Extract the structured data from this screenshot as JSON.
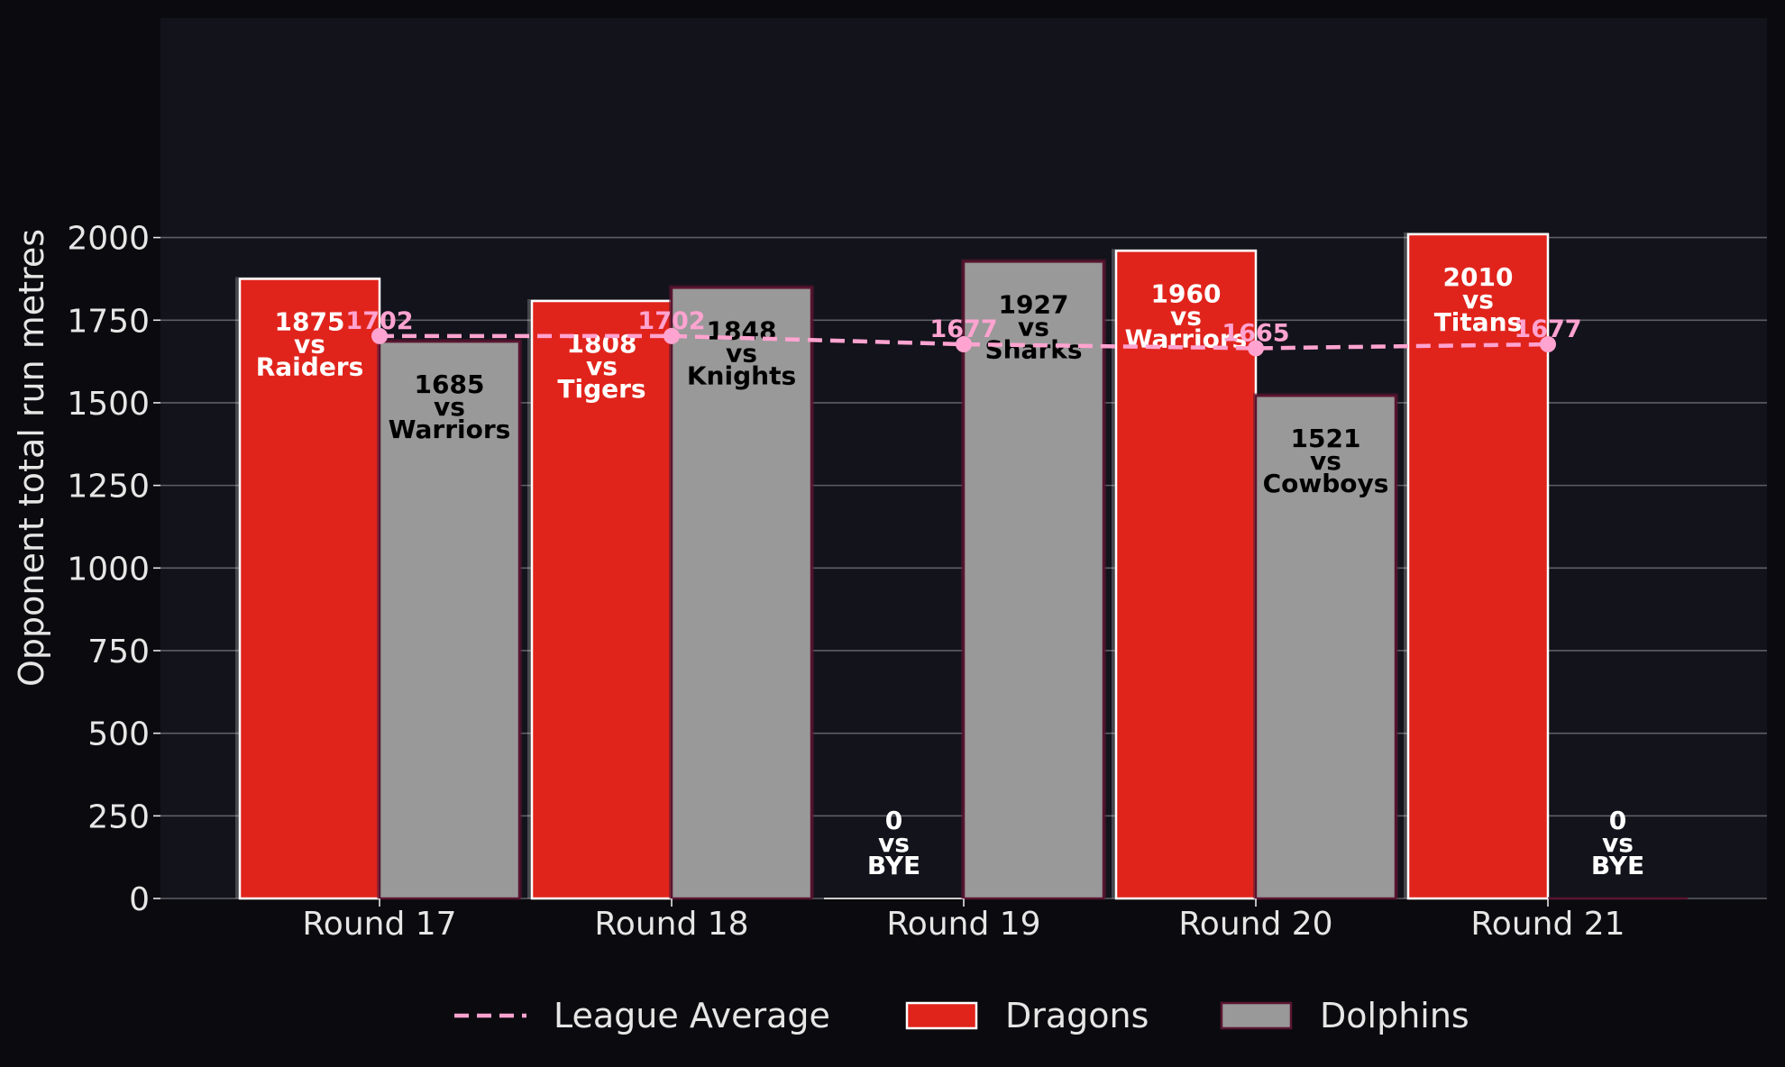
{
  "chart_data": {
    "type": "bar",
    "categories": [
      "Round 17",
      "Round 18",
      "Round 19",
      "Round 20",
      "Round 21"
    ],
    "ylabel": "Opponent total run metres",
    "xlabel": "",
    "ylim": [
      0,
      2110
    ],
    "yticks": [
      0,
      250,
      500,
      750,
      1000,
      1250,
      1500,
      1750,
      2000
    ],
    "grid": "horizontal",
    "legend_position": "bottom",
    "series": [
      {
        "name": "Dragons",
        "color": "#e0241c",
        "values": [
          1875,
          1808,
          0,
          1960,
          2010
        ],
        "opponents": [
          "Raiders",
          "Tigers",
          "BYE",
          "Warriors",
          "Titans"
        ],
        "labels": [
          "1875\nvs\nRaiders",
          "1808\nvs\nTigers",
          "0\nvs\nBYE",
          "1960\nvs\nWarriors",
          "2010\nvs\nTitans"
        ]
      },
      {
        "name": "Dolphins",
        "color": "#999999",
        "values": [
          1685,
          1848,
          1927,
          1521,
          0
        ],
        "opponents": [
          "Warriors",
          "Knights",
          "Sharks",
          "Cowboys",
          "BYE"
        ],
        "labels": [
          "1685\nvs\nWarriors",
          "1848\nvs\nKnights",
          "1927\nvs\nSharks",
          "1521\nvs\nCowboys",
          "0\nvs\nBYE"
        ]
      },
      {
        "name": "League Average",
        "type": "line",
        "style": "dashed",
        "color": "#ffa3d0",
        "values": [
          1702,
          1702,
          1677,
          1665,
          1677
        ]
      }
    ],
    "legend": [
      "League Average",
      "Dragons",
      "Dolphins"
    ],
    "colors": {
      "background": "#0b0b0f",
      "plot_background": "#13131b",
      "grid": "#5e5e66",
      "dragons": "#e0241c",
      "dolphins": "#999999",
      "average": "#ffa3d0",
      "bar_edge_dragons": "#ffffff",
      "bar_edge_dolphins": "#5a1530",
      "text": "#e6e6e6"
    }
  }
}
